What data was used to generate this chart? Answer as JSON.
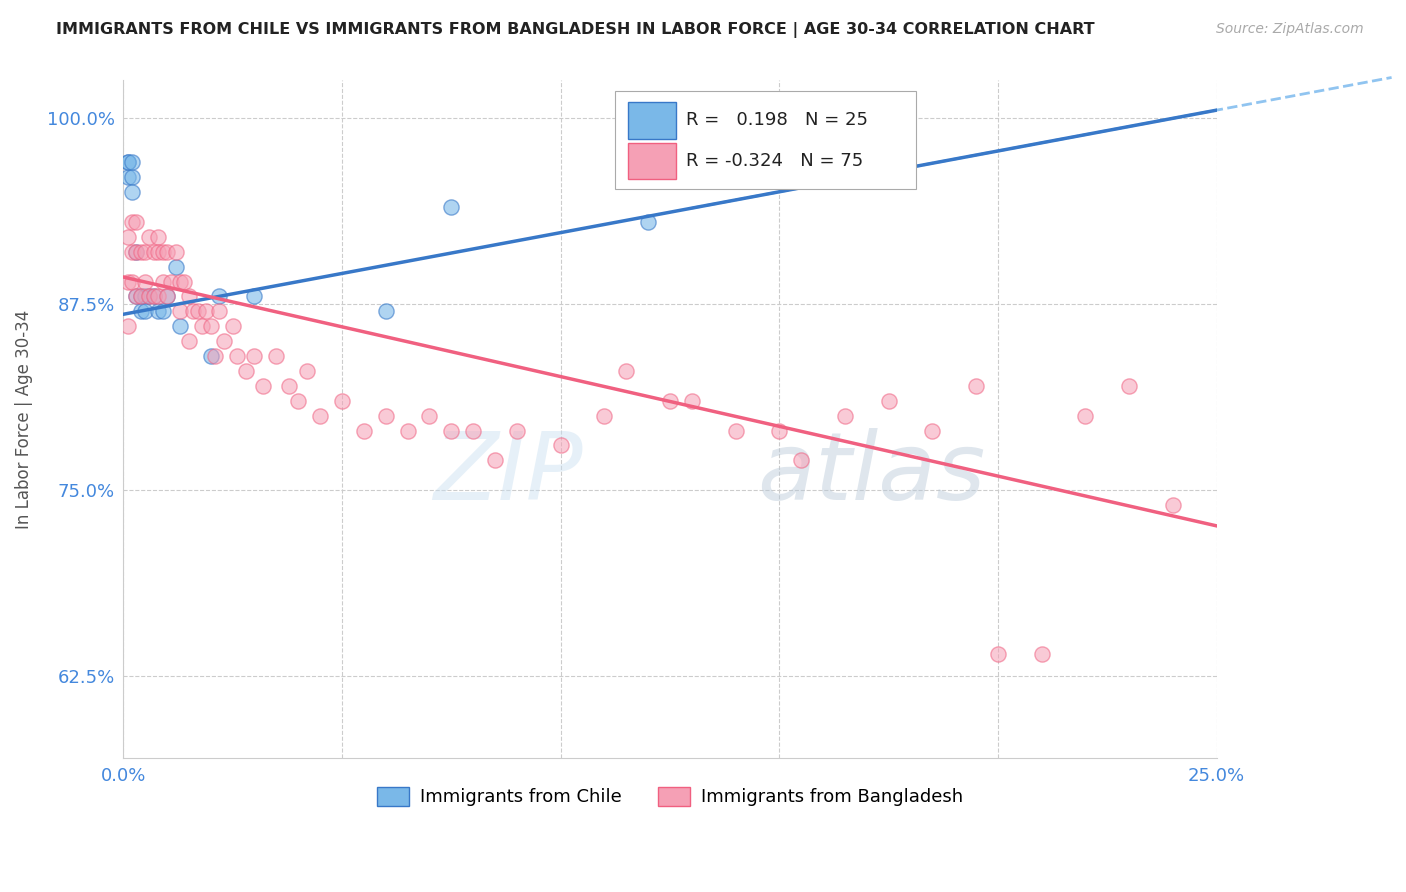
{
  "title": "IMMIGRANTS FROM CHILE VS IMMIGRANTS FROM BANGLADESH IN LABOR FORCE | AGE 30-34 CORRELATION CHART",
  "source": "Source: ZipAtlas.com",
  "ylabel": "In Labor Force | Age 30-34",
  "x_min": 0.0,
  "x_max": 0.25,
  "y_min": 0.57,
  "y_max": 1.025,
  "x_ticks": [
    0.0,
    0.05,
    0.1,
    0.15,
    0.2,
    0.25
  ],
  "x_tick_labels": [
    "0.0%",
    "",
    "",
    "",
    "",
    "25.0%"
  ],
  "y_ticks": [
    0.625,
    0.75,
    0.875,
    1.0
  ],
  "y_tick_labels": [
    "62.5%",
    "75.0%",
    "87.5%",
    "100.0%"
  ],
  "legend_R_chile": "0.198",
  "legend_N_chile": "25",
  "legend_R_bangladesh": "-0.324",
  "legend_N_bangladesh": "75",
  "color_chile": "#7ab8e8",
  "color_bangladesh": "#f5a0b5",
  "color_trendline_chile": "#3878c8",
  "color_trendline_bangladesh": "#f06080",
  "color_dashed": "#90c4f0",
  "watermark_zip": "ZIP",
  "watermark_atlas": "atlas",
  "trendline_chile_x0": 0.0,
  "trendline_chile_y0": 0.868,
  "trendline_chile_x1": 0.25,
  "trendline_chile_y1": 1.005,
  "trendline_bang_x0": 0.0,
  "trendline_bang_y0": 0.893,
  "trendline_bang_x1": 0.25,
  "trendline_bang_y1": 0.726,
  "chile_x": [
    0.001,
    0.001,
    0.001,
    0.002,
    0.002,
    0.002,
    0.003,
    0.003,
    0.004,
    0.004,
    0.005,
    0.005,
    0.006,
    0.007,
    0.008,
    0.009,
    0.01,
    0.012,
    0.013,
    0.02,
    0.022,
    0.03,
    0.06,
    0.075,
    0.12
  ],
  "chile_y": [
    0.97,
    0.96,
    0.97,
    0.96,
    0.97,
    0.95,
    0.91,
    0.88,
    0.88,
    0.87,
    0.88,
    0.87,
    0.88,
    0.88,
    0.87,
    0.87,
    0.88,
    0.9,
    0.86,
    0.84,
    0.88,
    0.88,
    0.87,
    0.94,
    0.93
  ],
  "bangladesh_x": [
    0.001,
    0.001,
    0.001,
    0.002,
    0.002,
    0.002,
    0.003,
    0.003,
    0.003,
    0.004,
    0.004,
    0.005,
    0.005,
    0.006,
    0.006,
    0.007,
    0.007,
    0.008,
    0.008,
    0.008,
    0.009,
    0.009,
    0.01,
    0.01,
    0.011,
    0.012,
    0.013,
    0.013,
    0.014,
    0.015,
    0.015,
    0.016,
    0.017,
    0.018,
    0.019,
    0.02,
    0.021,
    0.022,
    0.023,
    0.025,
    0.026,
    0.028,
    0.03,
    0.032,
    0.035,
    0.038,
    0.04,
    0.042,
    0.045,
    0.05,
    0.055,
    0.06,
    0.065,
    0.07,
    0.075,
    0.08,
    0.085,
    0.09,
    0.1,
    0.11,
    0.115,
    0.125,
    0.13,
    0.14,
    0.15,
    0.155,
    0.165,
    0.175,
    0.185,
    0.195,
    0.2,
    0.21,
    0.22,
    0.23,
    0.24
  ],
  "bangladesh_y": [
    0.92,
    0.89,
    0.86,
    0.93,
    0.91,
    0.89,
    0.93,
    0.91,
    0.88,
    0.91,
    0.88,
    0.91,
    0.89,
    0.92,
    0.88,
    0.91,
    0.88,
    0.92,
    0.91,
    0.88,
    0.91,
    0.89,
    0.91,
    0.88,
    0.89,
    0.91,
    0.89,
    0.87,
    0.89,
    0.88,
    0.85,
    0.87,
    0.87,
    0.86,
    0.87,
    0.86,
    0.84,
    0.87,
    0.85,
    0.86,
    0.84,
    0.83,
    0.84,
    0.82,
    0.84,
    0.82,
    0.81,
    0.83,
    0.8,
    0.81,
    0.79,
    0.8,
    0.79,
    0.8,
    0.79,
    0.79,
    0.77,
    0.79,
    0.78,
    0.8,
    0.83,
    0.81,
    0.81,
    0.79,
    0.79,
    0.77,
    0.8,
    0.81,
    0.79,
    0.82,
    0.64,
    0.64,
    0.8,
    0.82,
    0.74
  ]
}
